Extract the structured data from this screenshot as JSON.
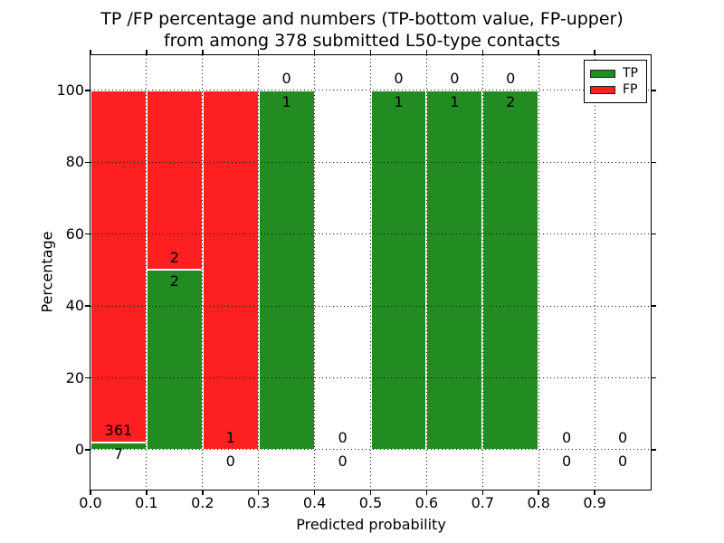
{
  "figure": {
    "title_line1": "TP /FP percentage and numbers (TP-bottom value, FP-upper)",
    "title_line2": "from among 378 submitted L50-type contacts"
  },
  "chart_data": {
    "type": "bar",
    "stacked": true,
    "title": "TP /FP percentage and numbers (TP-bottom value, FP-upper) from among 378 submitted L50-type contacts",
    "xlabel": "Predicted probability",
    "ylabel": "Percentage",
    "total_contacts": 378,
    "bin_width": 0.1,
    "categories": [
      "0.0-0.1",
      "0.1-0.2",
      "0.2-0.3",
      "0.3-0.4",
      "0.4-0.5",
      "0.5-0.6",
      "0.6-0.7",
      "0.7-0.8",
      "0.8-0.9",
      "0.9-1.0"
    ],
    "series": [
      {
        "name": "TP",
        "color": "#228b22",
        "counts": [
          7,
          2,
          0,
          1,
          0,
          1,
          1,
          2,
          0,
          0
        ]
      },
      {
        "name": "FP",
        "color": "#fe2020",
        "counts": [
          361,
          2,
          1,
          0,
          0,
          0,
          0,
          0,
          0,
          0
        ]
      }
    ],
    "bar_percentages_tp": [
      1.9,
      50.0,
      0.0,
      100.0,
      null,
      100.0,
      100.0,
      100.0,
      null,
      null
    ],
    "bar_percentages_fp": [
      98.1,
      50.0,
      100.0,
      0.0,
      null,
      0.0,
      0.0,
      0.0,
      null,
      null
    ],
    "xticks": [
      "0.0",
      "0.1",
      "0.2",
      "0.3",
      "0.4",
      "0.5",
      "0.6",
      "0.7",
      "0.8",
      "0.9"
    ],
    "yticks": [
      0,
      20,
      40,
      60,
      80,
      100
    ],
    "xlim": [
      0,
      1
    ],
    "ylim": [
      -11.1,
      109.8
    ],
    "grid": "dotted",
    "grid_on": true,
    "legend_position": "upper right",
    "legend": [
      {
        "label": "TP",
        "color": "#228b22"
      },
      {
        "label": "FP",
        "color": "#fe2020"
      }
    ],
    "bar_edge_color": "#ffffff"
  }
}
